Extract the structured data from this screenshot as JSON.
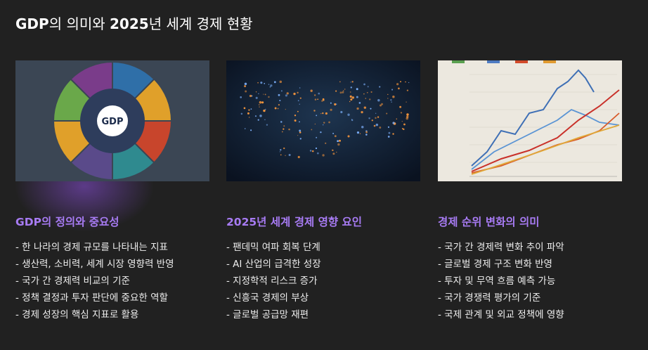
{
  "header": {
    "title": [
      {
        "text": "GDP",
        "bold": true
      },
      {
        "text": "의 의미와 ",
        "bold": false
      },
      {
        "text": "2025",
        "bold": true
      },
      {
        "text": "년 세계 경제 현황",
        "bold": false
      }
    ]
  },
  "columns": [
    {
      "heading": "GDP의 정의와 중요성",
      "items": [
        "- 한 나라의 경제 규모를 나타내는 지표",
        "- 생산력, 소비력, 세계 시장 영향력 반영",
        "- 국가 간 경제력 비교의 기준",
        "- 정책 결정과 투자 판단에 중요한 역할",
        "- 경제 성장의 핵심 지표로 활용"
      ]
    },
    {
      "heading": "2025년 세계 경제 영향 요인",
      "items": [
        "- 팬데믹 여파 회복 단계",
        "- AI 산업의 급격한 성장",
        "- 지정학적 리스크 증가",
        "- 신흥국 경제의 부상",
        "- 글로벌 공급망 재편"
      ]
    },
    {
      "heading": "경제 순위 변화의 의미",
      "items": [
        "- 국가 간 경제력 변화 추이 파악",
        "- 글로벌 경제 구조 변화 반영",
        "- 투자 및 무역 흐름 예측 가능",
        "- 국가 경쟁력 평가의 기준",
        "- 국제 관계 및 외교 정책에 영향"
      ]
    }
  ]
}
